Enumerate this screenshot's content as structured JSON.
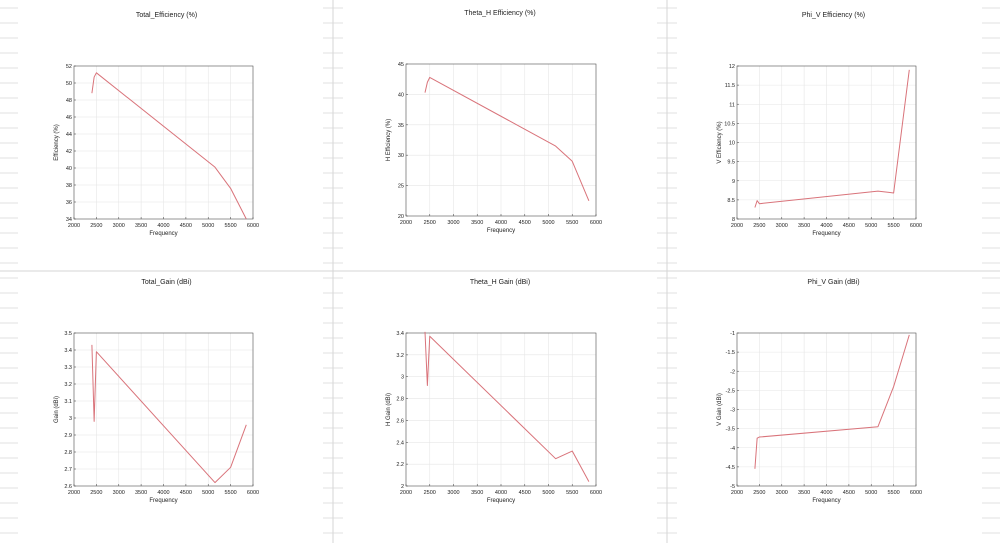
{
  "colors": {
    "line": "#d9737a",
    "grid": "#e6e6e6",
    "background_grid": "#d6d6d6"
  },
  "chart_data": [
    {
      "type": "line",
      "title": "Total_Efficiency (%)",
      "xlabel": "Frequency",
      "ylabel": "Efficiency (%)",
      "xlim": [
        2000,
        6000
      ],
      "ylim": [
        34,
        52
      ],
      "xticks": [
        2000,
        2500,
        3000,
        3500,
        4000,
        4500,
        5000,
        5500,
        6000
      ],
      "yticks": [
        34,
        36,
        38,
        40,
        42,
        44,
        46,
        48,
        50,
        52
      ],
      "grid": true,
      "series": [
        {
          "x": [
            2400,
            2450,
            2500,
            5150,
            5500,
            5850
          ],
          "y": [
            48.8,
            50.7,
            51.2,
            40.1,
            37.6,
            34.0
          ]
        }
      ]
    },
    {
      "type": "line",
      "title": "Theta_H Efficiency (%)",
      "xlabel": "Frequency",
      "ylabel": "H Efficiency (%)",
      "xlim": [
        2000,
        6000
      ],
      "ylim": [
        20,
        45
      ],
      "xticks": [
        2000,
        2500,
        3000,
        3500,
        4000,
        4500,
        5000,
        5500,
        6000
      ],
      "yticks": [
        20,
        25,
        30,
        35,
        40,
        45
      ],
      "grid": true,
      "series": [
        {
          "x": [
            2400,
            2450,
            2500,
            5150,
            5500,
            5850
          ],
          "y": [
            40.3,
            42.0,
            42.8,
            31.5,
            29.0,
            22.5
          ]
        }
      ]
    },
    {
      "type": "line",
      "title": "Phi_V Efficiency (%)",
      "xlabel": "Frequency",
      "ylabel": "V Efficiency (%)",
      "xlim": [
        2000,
        6000
      ],
      "ylim": [
        8,
        12
      ],
      "xticks": [
        2000,
        2500,
        3000,
        3500,
        4000,
        4500,
        5000,
        5500,
        6000
      ],
      "yticks": [
        8,
        8.5,
        9,
        9.5,
        10,
        10.5,
        11,
        11.5,
        12
      ],
      "grid": true,
      "series": [
        {
          "x": [
            2400,
            2450,
            2500,
            5150,
            5500,
            5850
          ],
          "y": [
            8.3,
            8.48,
            8.4,
            8.73,
            8.68,
            11.9
          ]
        }
      ]
    },
    {
      "type": "line",
      "title": "Total_Gain (dBi)",
      "xlabel": "Frequency",
      "ylabel": "Gain (dBi)",
      "xlim": [
        2000,
        6000
      ],
      "ylim": [
        2.6,
        3.5
      ],
      "xticks": [
        2000,
        2500,
        3000,
        3500,
        4000,
        4500,
        5000,
        5500,
        6000
      ],
      "yticks": [
        2.6,
        2.7,
        2.8,
        2.9,
        3,
        3.1,
        3.2,
        3.3,
        3.4,
        3.5
      ],
      "grid": true,
      "series": [
        {
          "x": [
            2400,
            2450,
            2500,
            5150,
            5500,
            5850
          ],
          "y": [
            3.43,
            2.98,
            3.39,
            2.62,
            2.71,
            2.96
          ]
        }
      ]
    },
    {
      "type": "line",
      "title": "Theta_H Gain (dBi)",
      "xlabel": "Frequency",
      "ylabel": "H Gain (dBi)",
      "xlim": [
        2000,
        6000
      ],
      "ylim": [
        2,
        3.4
      ],
      "xticks": [
        2000,
        2500,
        3000,
        3500,
        4000,
        4500,
        5000,
        5500,
        6000
      ],
      "yticks": [
        2,
        2.2,
        2.4,
        2.6,
        2.8,
        3,
        3.2,
        3.4
      ],
      "grid": true,
      "series": [
        {
          "x": [
            2400,
            2450,
            2500,
            5150,
            5500,
            5850
          ],
          "y": [
            3.41,
            2.92,
            3.37,
            2.25,
            2.32,
            2.04
          ]
        }
      ]
    },
    {
      "type": "line",
      "title": "Phi_V Gain (dBi)",
      "xlabel": "Frequency",
      "ylabel": "V Gain (dBi)",
      "xlim": [
        2000,
        6000
      ],
      "ylim": [
        -5,
        -1
      ],
      "xticks": [
        2000,
        2500,
        3000,
        3500,
        4000,
        4500,
        5000,
        5500,
        6000
      ],
      "yticks": [
        -5,
        -4.5,
        -4,
        -3.5,
        -3,
        -2.5,
        -2,
        -1.5,
        -1
      ],
      "grid": true,
      "series": [
        {
          "x": [
            2400,
            2450,
            2500,
            5150,
            5500,
            5850
          ],
          "y": [
            -4.55,
            -3.75,
            -3.72,
            -3.45,
            -2.4,
            -1.05
          ]
        }
      ]
    }
  ]
}
